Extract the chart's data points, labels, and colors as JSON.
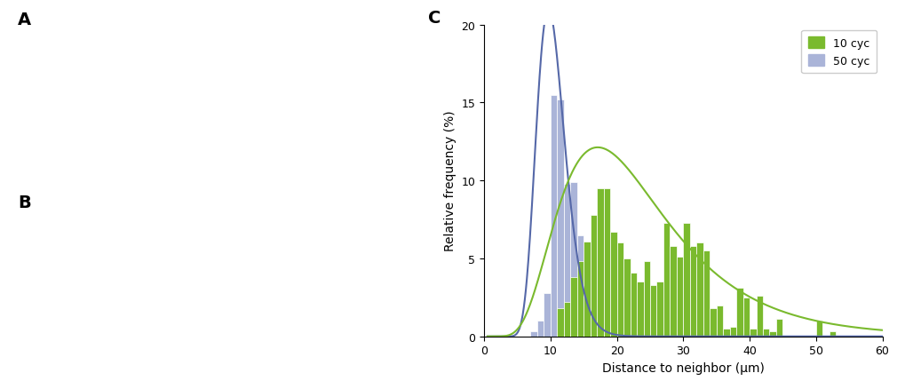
{
  "xlabel": "Distance to neighbor (μm)",
  "ylabel": "Relative frequency (%)",
  "xlim": [
    0,
    60
  ],
  "ylim": [
    0,
    20
  ],
  "xticks": [
    0,
    10,
    20,
    30,
    40,
    50,
    60
  ],
  "yticks": [
    0,
    5,
    10,
    15,
    20
  ],
  "green_color": "#7aba2e",
  "green_edge": "#6aa020",
  "blue_face_color": "#aab4d8",
  "blue_line_color": "#5568a8",
  "legend_10cyc": "10 cyc",
  "legend_50cyc": "50 cyc",
  "fig_width": 10.19,
  "fig_height": 4.39,
  "dpi": 100,
  "bins_50cyc_left": [
    6,
    7,
    8,
    9,
    10,
    11,
    12,
    13,
    14,
    15,
    16,
    17,
    18
  ],
  "vals_50cyc": [
    0.0,
    0.3,
    1.0,
    2.8,
    15.5,
    15.2,
    9.8,
    9.9,
    6.5,
    4.8,
    2.0,
    1.2,
    0.2
  ],
  "bins_10cyc_left": [
    11,
    12,
    13,
    14,
    15,
    16,
    17,
    18,
    19,
    20,
    21,
    22,
    23,
    24,
    25,
    26,
    27,
    28,
    29,
    30,
    31,
    32,
    33,
    34,
    35,
    36,
    37,
    38,
    39,
    40,
    41,
    42,
    43,
    44,
    45,
    46,
    47,
    48,
    49,
    50,
    51,
    52,
    53,
    54,
    55,
    56,
    57,
    58
  ],
  "vals_10cyc": [
    1.8,
    2.2,
    3.8,
    4.8,
    6.1,
    7.8,
    9.5,
    9.5,
    6.7,
    6.0,
    5.0,
    4.1,
    3.5,
    4.8,
    3.3,
    3.5,
    7.3,
    5.8,
    5.1,
    7.3,
    5.8,
    6.0,
    5.5,
    1.8,
    2.0,
    0.5,
    0.6,
    3.1,
    2.5,
    0.5,
    2.6,
    0.5,
    0.3,
    1.1,
    0.0,
    0.0,
    0.0,
    0.0,
    0.0,
    1.0,
    0.0,
    0.3,
    0.0,
    0.0,
    0.0,
    0.0,
    0.0,
    0.0
  ],
  "curve_50_mu": 2.32,
  "curve_50_sigma": 0.22,
  "curve_50_scale": 115.0,
  "curve_10_mu": 3.07,
  "curve_10_sigma": 0.48,
  "curve_10_scale": 280.0
}
